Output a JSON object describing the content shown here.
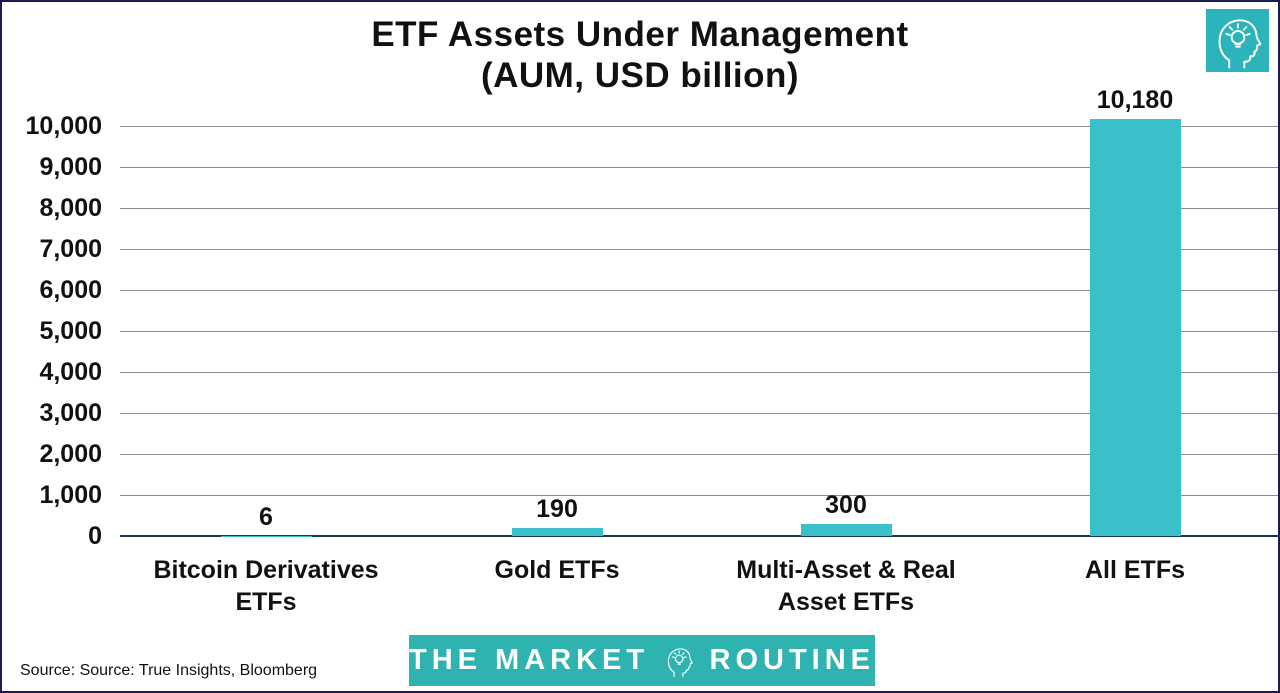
{
  "page": {
    "background": "#ffffff",
    "border_color": "#1b1b52"
  },
  "header": {
    "title_line1": "ETF Assets Under Management",
    "title_line2": "(AUM, USD billion)",
    "logo_icon": "head-lightbulb-icon",
    "logo_color": "#2cb4ba"
  },
  "chart_data": {
    "type": "bar",
    "title": "ETF Assets Under Management (AUM, USD billion)",
    "categories": [
      "Bitcoin Derivatives ETFs",
      "Gold ETFs",
      "Multi-Asset & Real Asset ETFs",
      "All ETFs"
    ],
    "category_lines": [
      [
        "Bitcoin Derivatives",
        "ETFs"
      ],
      [
        "Gold ETFs"
      ],
      [
        "Multi-Asset & Real",
        "Asset ETFs"
      ],
      [
        "All ETFs"
      ]
    ],
    "values": [
      6,
      190,
      300,
      10180
    ],
    "value_labels": [
      "6",
      "190",
      "300",
      "10,180"
    ],
    "xlabel": "",
    "ylabel": "",
    "ylim": [
      0,
      10000
    ],
    "ytick_interval": 1000,
    "ytick_labels": [
      "0",
      "1,000",
      "2,000",
      "3,000",
      "4,000",
      "5,000",
      "6,000",
      "7,000",
      "8,000",
      "9,000",
      "10,000"
    ],
    "grid": true,
    "legend": "none",
    "bar_color": "#3bbfc9",
    "gridline_color": "#8c8c8c",
    "axis_color": "#17365d"
  },
  "footer": {
    "source_text": "Source: Source: True Insights,  Bloomberg",
    "banner_color": "#2eb3b0",
    "brand_left": "THE MARKET",
    "brand_icon": "head-lightbulb-icon",
    "brand_right": "ROUTINE"
  }
}
